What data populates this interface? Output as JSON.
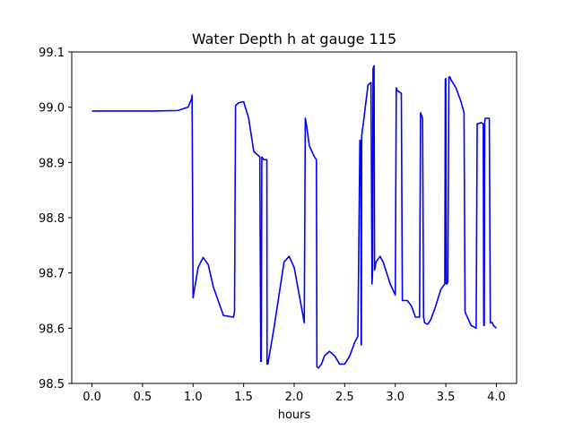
{
  "chart_data": {
    "type": "line",
    "title": "Water Depth h at gauge 115",
    "xlabel": "hours",
    "ylabel": "",
    "xlim": [
      -0.2,
      4.2
    ],
    "ylim": [
      98.5,
      99.1
    ],
    "xticks": [
      0.0,
      0.5,
      1.0,
      1.5,
      2.0,
      2.5,
      3.0,
      3.5,
      4.0
    ],
    "xtick_labels": [
      "0.0",
      "0.5",
      "1.0",
      "1.5",
      "2.0",
      "2.5",
      "3.0",
      "3.5",
      "4.0"
    ],
    "yticks": [
      98.5,
      98.6,
      98.7,
      98.8,
      98.9,
      99.0,
      99.1
    ],
    "ytick_labels": [
      "98.5",
      "98.6",
      "98.7",
      "98.8",
      "98.9",
      "99.0",
      "99.1"
    ],
    "grid": false,
    "series": [
      {
        "color": "#0000ff",
        "x": [
          0.0,
          0.3,
          0.6,
          0.85,
          0.95,
          0.985,
          0.99,
          1.0,
          1.05,
          1.1,
          1.15,
          1.2,
          1.3,
          1.4,
          1.41,
          1.42,
          1.45,
          1.5,
          1.55,
          1.6,
          1.66,
          1.67,
          1.675,
          1.68,
          1.7,
          1.705,
          1.71,
          1.73,
          1.732,
          1.74,
          1.8,
          1.9,
          1.95,
          2.0,
          2.05,
          2.1,
          2.11,
          2.12,
          2.15,
          2.2,
          2.22,
          2.225,
          2.24,
          2.27,
          2.3,
          2.35,
          2.4,
          2.45,
          2.5,
          2.55,
          2.6,
          2.63,
          2.65,
          2.66,
          2.662,
          2.665,
          2.668,
          2.67,
          2.672,
          2.675,
          2.68,
          2.73,
          2.76,
          2.77,
          2.775,
          2.78,
          2.79,
          2.795,
          2.8,
          2.81,
          2.85,
          2.88,
          2.95,
          3.0,
          3.01,
          3.02,
          3.06,
          3.07,
          3.075,
          3.09,
          3.12,
          3.16,
          3.2,
          3.24,
          3.25,
          3.26,
          3.27,
          3.28,
          3.29,
          3.32,
          3.35,
          3.4,
          3.45,
          3.49,
          3.495,
          3.5,
          3.505,
          3.51,
          3.52,
          3.53,
          3.54,
          3.55,
          3.6,
          3.65,
          3.68,
          3.69,
          3.7,
          3.75,
          3.8,
          3.81,
          3.82,
          3.85,
          3.87,
          3.875,
          3.88,
          3.885,
          3.89,
          3.9,
          3.91,
          3.92,
          3.93,
          3.94,
          3.96,
          3.97,
          4.0
        ],
        "y": [
          98.993,
          98.993,
          98.993,
          98.994,
          99.0,
          99.015,
          99.022,
          98.655,
          98.71,
          98.728,
          98.715,
          98.675,
          98.623,
          98.62,
          98.63,
          99.003,
          99.008,
          99.01,
          98.98,
          98.92,
          98.91,
          98.54,
          98.54,
          98.91,
          98.905,
          98.905,
          98.905,
          98.905,
          98.535,
          98.535,
          98.6,
          98.72,
          98.73,
          98.71,
          98.66,
          98.61,
          98.98,
          98.97,
          98.93,
          98.91,
          98.905,
          98.53,
          98.528,
          98.535,
          98.55,
          98.558,
          98.55,
          98.535,
          98.535,
          98.55,
          98.575,
          98.585,
          98.94,
          98.94,
          98.57,
          98.57,
          98.95,
          98.95,
          98.955,
          98.96,
          98.965,
          99.04,
          99.045,
          98.68,
          98.7,
          99.07,
          99.075,
          98.705,
          98.71,
          98.72,
          98.73,
          98.72,
          98.68,
          98.66,
          99.035,
          99.03,
          99.025,
          98.65,
          98.65,
          98.65,
          98.65,
          98.64,
          98.62,
          98.62,
          98.99,
          98.985,
          98.98,
          98.62,
          98.61,
          98.607,
          98.615,
          98.64,
          98.67,
          98.68,
          99.05,
          99.052,
          98.68,
          98.68,
          98.683,
          99.054,
          99.055,
          99.05,
          99.035,
          99.01,
          98.99,
          98.63,
          98.625,
          98.605,
          98.6,
          98.97,
          98.97,
          98.972,
          98.97,
          98.605,
          98.605,
          98.975,
          98.98,
          98.98,
          98.98,
          98.98,
          98.98,
          98.61,
          98.61,
          98.605,
          98.6
        ]
      }
    ]
  }
}
